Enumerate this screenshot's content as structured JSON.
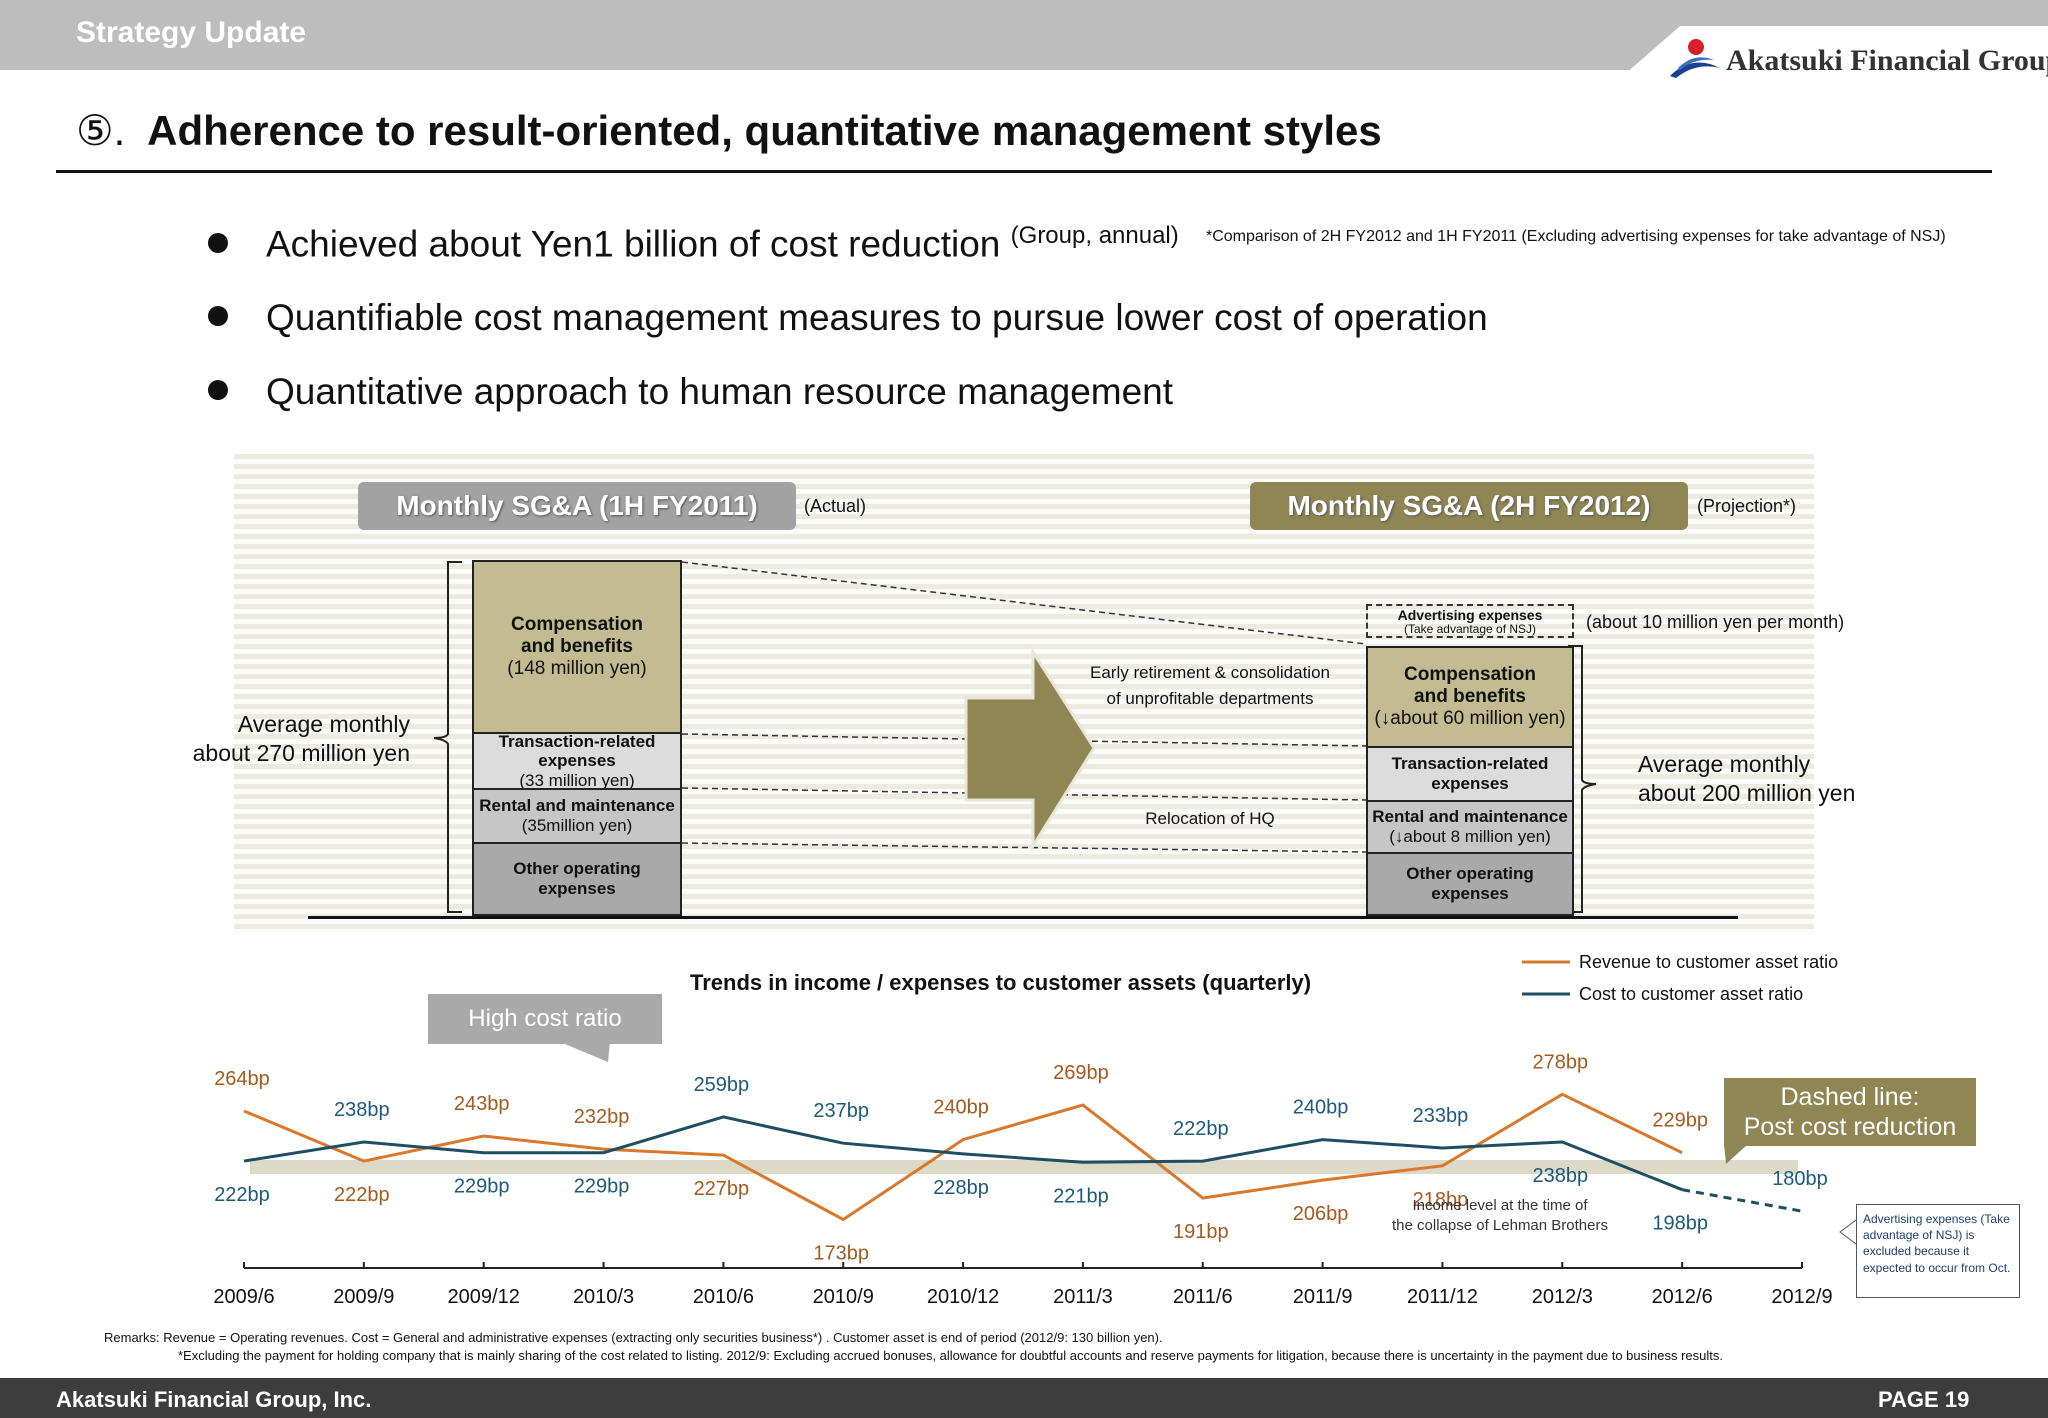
{
  "header": {
    "section": "Strategy Update",
    "logo_text": "Akatsuki Financial Group"
  },
  "title": {
    "marker": "⑤.",
    "text": "Adherence to result-oriented, quantitative management styles"
  },
  "bullets": [
    {
      "text": "Achieved about Yen1 billion of cost reduction",
      "note": "(Group, annual)"
    },
    {
      "text": "Quantifiable cost management measures to pursue lower cost of operation"
    },
    {
      "text": "Quantitative approach to human resource management"
    }
  ],
  "comparison_note": "*Comparison of 2H FY2012 and 1H FY2011 (Excluding advertising expenses for take advantage of NSJ)",
  "sga": {
    "left": {
      "title": "Monthly SG&A (1H FY2011)",
      "tag": "(Actual)",
      "avg_line1": "Average monthly",
      "avg_line2": "about 270 million yen",
      "segments": {
        "comp_l1": "Compensation",
        "comp_l2": "and benefits",
        "comp_sub": "(148 million yen)",
        "trans_l1": "Transaction-related",
        "trans_l2": "expenses",
        "trans_sub": "(33 million yen)",
        "rent_l1": "Rental and maintenance",
        "rent_sub": "(35million yen)",
        "other_l1": "Other operating",
        "other_l2": "expenses"
      }
    },
    "right": {
      "title": "Monthly SG&A (2H FY2012)",
      "tag": "(Projection*)",
      "avg_line1": "Average monthly",
      "avg_line2": "about 200 million yen",
      "adv_l1": "Advertising expenses",
      "adv_sub": "(Take advantage of NSJ)",
      "adv_note": "(about 10 million yen per month)",
      "segments": {
        "comp_l1": "Compensation",
        "comp_l2": "and benefits",
        "comp_sub": "(↓about 60 million yen)",
        "trans_l1": "Transaction-related",
        "trans_l2": "expenses",
        "rent_l1": "Rental and maintenance",
        "rent_sub": "(↓about 8 million yen)",
        "other_l1": "Other operating",
        "other_l2": "expenses"
      }
    },
    "measure1_l1": "Early retirement & consolidation",
    "measure1_l2": "of unprofitable departments",
    "measure2": "Relocation of HQ"
  },
  "chart_callouts": {
    "high_cost": "High cost ratio",
    "dashed_l1": "Dashed line:",
    "dashed_l2": "Post cost reduction",
    "lehman_l1": "Income level  at the time of",
    "lehman_l2": "the collapse of Lehman  Brothers",
    "adv_note": "Advertising expenses (Take advantage of NSJ) is excluded because it expected to occur from Oct."
  },
  "chart_data": {
    "type": "line",
    "title": "Trends in income / expenses to customer assets (quarterly)",
    "categories": [
      "2009/6",
      "2009/9",
      "2009/12",
      "2010/3",
      "2010/6",
      "2010/9",
      "2010/12",
      "2011/3",
      "2011/6",
      "2011/9",
      "2011/12",
      "2012/3",
      "2012/6",
      "2012/9"
    ],
    "series": [
      {
        "name": "Revenue to customer asset ratio",
        "color": "#d9772b",
        "text_color": "#a45a1c",
        "values": [
          264,
          222,
          243,
          232,
          227,
          173,
          240,
          269,
          191,
          206,
          218,
          278,
          229,
          null
        ],
        "labels": [
          "264bp",
          "222bp",
          "243bp",
          "232bp",
          "227bp",
          "173bp",
          "240bp",
          "269bp",
          "191bp",
          "206bp",
          "218bp",
          "278bp",
          "229bp",
          ""
        ]
      },
      {
        "name": "Cost to customer asset ratio",
        "color": "#1f4e62",
        "text_color": "#1c5a7a",
        "values": [
          222,
          238,
          229,
          229,
          259,
          237,
          228,
          221,
          222,
          240,
          233,
          238,
          198,
          180
        ],
        "labels": [
          "222bp",
          "238bp",
          "229bp",
          "229bp",
          "259bp",
          "237bp",
          "228bp",
          "221bp",
          "222bp",
          "240bp",
          "233bp",
          "238bp",
          "198bp",
          "180bp"
        ],
        "dashed_from_index": 12
      }
    ],
    "band": {
      "value": 191,
      "color": "#dcdac6"
    },
    "legend_position": "top-right",
    "grid": false,
    "ylim": [
      160,
      290
    ]
  },
  "remarks": {
    "line1": "Remarks:   Revenue = Operating revenues.  Cost = General and administrative expenses (extracting only securities business*) .   Customer asset is end of period (2012/9: 130 billion yen).",
    "line2": "*Excluding the payment for holding company that is mainly sharing of the cost related to listing.   2012/9:  Excluding accrued bonuses, allowance for doubtful accounts and reserve payments for litigation, because there is uncertainty in the payment due to business results."
  },
  "footer": {
    "company": "Akatsuki Financial Group, Inc.",
    "page": "PAGE 19"
  }
}
